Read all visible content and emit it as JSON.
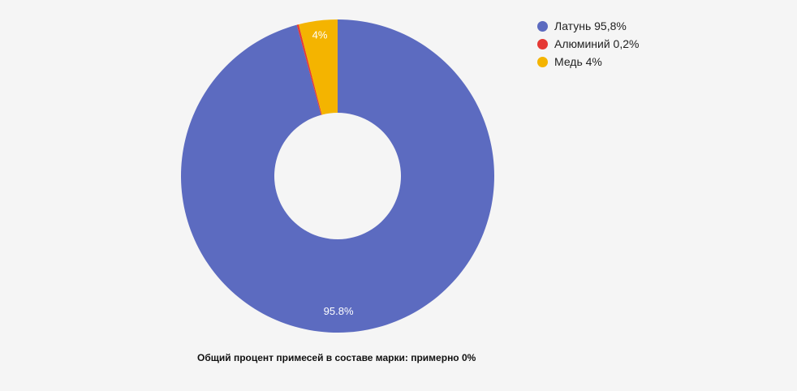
{
  "chart_data": {
    "type": "pie",
    "categories": [
      "Латунь",
      "Алюминий",
      "Медь"
    ],
    "values": [
      95.8,
      0.2,
      4
    ],
    "slice_labels": [
      "95.8%",
      "",
      "4%"
    ],
    "colors": [
      "#5c6bc0",
      "#e53935",
      "#f4b400"
    ],
    "donut": true
  },
  "legend": {
    "placement": "top-right",
    "items": [
      {
        "label": "Латунь 95,8%",
        "color": "#5c6bc0"
      },
      {
        "label": "Алюминий 0,2%",
        "color": "#e53935"
      },
      {
        "label": "Медь 4%",
        "color": "#f4b400"
      }
    ]
  },
  "footer": {
    "note": "Общий процент примесей в составе марки: примерно 0%"
  }
}
